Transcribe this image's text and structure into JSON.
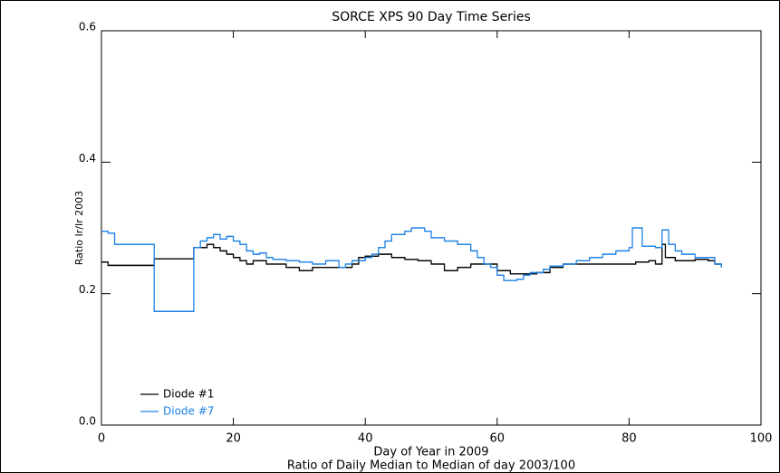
{
  "chart_data": {
    "type": "line",
    "step": "post",
    "title": "SORCE XPS 90 Day Time Series",
    "xlabel": "Day of Year in 2009",
    "xlabel2": "Ratio of Daily Median to Median of day 2003/100",
    "ylabel": "Ratio Ir/Ir 2003",
    "xlim": [
      0,
      100
    ],
    "xticks": [
      0,
      20,
      40,
      60,
      80,
      100
    ],
    "ylim": [
      0.0,
      0.6
    ],
    "yticks": [
      {
        "value": 0,
        "label": "0.0"
      },
      0.2,
      0.4,
      0.6
    ],
    "legend": "lower left",
    "series": [
      {
        "name": "Diode #1",
        "color": "#000000",
        "x": [
          0,
          1,
          8,
          14,
          16,
          17,
          18,
          19,
          20,
          21,
          22,
          23,
          25,
          28,
          30,
          32,
          38,
          39,
          40,
          42,
          44,
          46,
          48,
          50,
          52,
          54,
          56,
          58,
          60,
          62,
          66,
          68,
          70,
          81,
          83,
          84,
          85,
          85.5,
          87,
          90,
          92,
          93,
          94
        ],
        "values": [
          0.248,
          0.243,
          0.253,
          0.27,
          0.275,
          0.27,
          0.265,
          0.26,
          0.255,
          0.25,
          0.245,
          0.25,
          0.245,
          0.24,
          0.235,
          0.24,
          0.245,
          0.255,
          0.257,
          0.26,
          0.255,
          0.252,
          0.25,
          0.245,
          0.235,
          0.24,
          0.245,
          0.245,
          0.235,
          0.23,
          0.232,
          0.24,
          0.245,
          0.248,
          0.25,
          0.245,
          0.275,
          0.255,
          0.25,
          0.252,
          0.25,
          0.245,
          0.24
        ]
      },
      {
        "name": "Diode #7",
        "color": "#1e82e6",
        "x": [
          0,
          1,
          2,
          8,
          14,
          15,
          16,
          17,
          18,
          19,
          20,
          21,
          22,
          23,
          24,
          25,
          26,
          28,
          30,
          32,
          34,
          36,
          37,
          38,
          40,
          41,
          42,
          43,
          44,
          46,
          47,
          49,
          50,
          52,
          54,
          56,
          57,
          58,
          59,
          60,
          61,
          63,
          64,
          65,
          67,
          68,
          70,
          72,
          74,
          76,
          78,
          80,
          80.5,
          82,
          84,
          85,
          86,
          87,
          88,
          90,
          93,
          94
        ],
        "values": [
          0.295,
          0.292,
          0.275,
          0.173,
          0.27,
          0.28,
          0.285,
          0.29,
          0.283,
          0.287,
          0.28,
          0.275,
          0.265,
          0.26,
          0.262,
          0.255,
          0.252,
          0.25,
          0.248,
          0.245,
          0.25,
          0.24,
          0.245,
          0.25,
          0.255,
          0.26,
          0.27,
          0.28,
          0.29,
          0.295,
          0.3,
          0.295,
          0.285,
          0.28,
          0.275,
          0.265,
          0.255,
          0.245,
          0.24,
          0.228,
          0.22,
          0.222,
          0.228,
          0.232,
          0.237,
          0.242,
          0.245,
          0.25,
          0.255,
          0.26,
          0.265,
          0.27,
          0.3,
          0.272,
          0.27,
          0.297,
          0.275,
          0.265,
          0.26,
          0.255,
          0.245,
          0.24
        ]
      }
    ]
  }
}
